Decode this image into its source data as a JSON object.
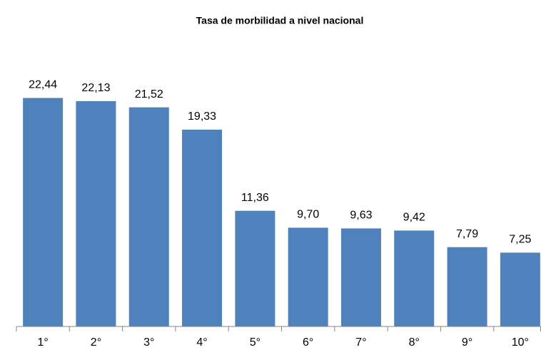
{
  "chart_data": {
    "type": "bar",
    "title": "Tasa de morbilidad a nivel nacional",
    "categories": [
      "1°",
      "2°",
      "3°",
      "4°",
      "5°",
      "6°",
      "7°",
      "8°",
      "9°",
      "10°"
    ],
    "values": [
      22.44,
      22.13,
      21.52,
      19.33,
      11.36,
      9.7,
      9.63,
      9.42,
      7.79,
      7.25
    ],
    "value_labels": [
      "22,44",
      "22,13",
      "21,52",
      "19,33",
      "11,36",
      "9,70",
      "9,63",
      "9,42",
      "7,79",
      "7,25"
    ],
    "color": "#4f81bd",
    "ylim": [
      0,
      28
    ]
  }
}
